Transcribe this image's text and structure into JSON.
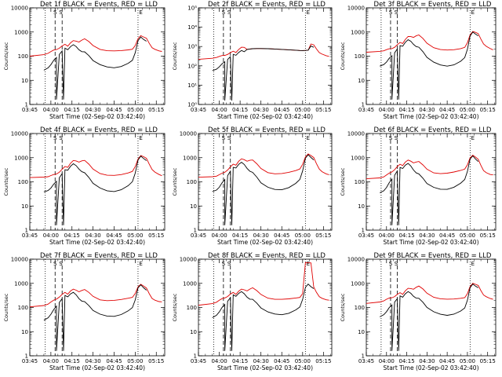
{
  "chart_data": [
    {
      "type": "line",
      "title": "Det 1f BLACK = Events, RED = LLD",
      "xlabel": "Start Time (02-Sep-02 03:42:40)",
      "ylabel": "Counts/sec",
      "yscale": "log",
      "ylim": [
        1,
        10000
      ],
      "yticks": [
        "1",
        "10",
        "100",
        "1000",
        "10000"
      ],
      "xlim": [
        "03:45",
        "05:21"
      ],
      "xticks": [
        "03:45",
        "04:00",
        "04:15",
        "04:30",
        "04:45",
        "05:00",
        "05:15"
      ],
      "markers": [
        "S",
        "S",
        "E"
      ],
      "series": []
    },
    {
      "type": "line",
      "title": "Det 2f BLACK = Events, RED = LLD",
      "xlabel": "Start Time (02-Sep-02 03:42:40)",
      "ylabel": "Counts/sec",
      "yscale": "log",
      "ylim": [
        1,
        100000
      ],
      "yticks": [
        "10⁰",
        "10¹",
        "10²",
        "10³",
        "10⁴",
        "10⁵"
      ],
      "xlim": [
        "03:45",
        "05:21"
      ],
      "xticks": [
        "03:45",
        "04:00",
        "04:15",
        "04:30",
        "04:45",
        "05:00",
        "05:15"
      ],
      "markers": [
        "S",
        "S",
        "E"
      ],
      "series": []
    },
    {
      "type": "line",
      "title": "Det 3f BLACK = Events, RED = LLD",
      "xlabel": "Start Time (02-Sep-02 03:42:40)",
      "ylabel": "Counts/sec",
      "yscale": "log",
      "ylim": [
        1,
        10000
      ],
      "yticks": [
        "1",
        "10",
        "100",
        "1000",
        "10000"
      ],
      "xlim": [
        "03:45",
        "05:21"
      ],
      "xticks": [
        "03:45",
        "04:00",
        "04:15",
        "04:30",
        "04:45",
        "05:00",
        "05:15"
      ],
      "markers": [
        "S",
        "S",
        "E"
      ],
      "series": []
    },
    {
      "type": "line",
      "title": "Det 4f BLACK = Events, RED = LLD",
      "xlabel": "Start Time (02-Sep-02 03:42:40)",
      "ylabel": "Counts/sec",
      "yscale": "log",
      "ylim": [
        1,
        10000
      ],
      "yticks": [
        "1",
        "10",
        "100",
        "1000",
        "10000"
      ],
      "xlim": [
        "03:45",
        "05:21"
      ],
      "xticks": [
        "03:45",
        "04:00",
        "04:15",
        "04:30",
        "04:45",
        "05:00",
        "05:15"
      ],
      "markers": [
        "S",
        "S",
        "E"
      ],
      "series": []
    },
    {
      "type": "line",
      "title": "Det 5f BLACK = Events, RED = LLD",
      "xlabel": "Start Time (02-Sep-02 03:42:40)",
      "ylabel": "Counts/sec",
      "yscale": "log",
      "ylim": [
        1,
        10000
      ],
      "yticks": [
        "1",
        "10",
        "100",
        "1000",
        "10000"
      ],
      "xlim": [
        "03:45",
        "05:21"
      ],
      "xticks": [
        "03:45",
        "04:00",
        "04:15",
        "04:30",
        "04:45",
        "05:00",
        "05:15"
      ],
      "markers": [
        "S",
        "S",
        "E"
      ],
      "series": []
    },
    {
      "type": "line",
      "title": "Det 6f BLACK = Events, RED = LLD",
      "xlabel": "Start Time (02-Sep-02 03:42:40)",
      "ylabel": "Counts/sec",
      "yscale": "log",
      "ylim": [
        1,
        10000
      ],
      "yticks": [
        "1",
        "10",
        "100",
        "1000",
        "10000"
      ],
      "xlim": [
        "03:45",
        "05:21"
      ],
      "xticks": [
        "03:45",
        "04:00",
        "04:15",
        "04:30",
        "04:45",
        "05:00",
        "05:15"
      ],
      "markers": [
        "S",
        "S",
        "E"
      ],
      "series": []
    },
    {
      "type": "line",
      "title": "Det 7f BLACK = Events, RED = LLD",
      "xlabel": "Start Time (02-Sep-02 03:42:40)",
      "ylabel": "Counts/sec",
      "yscale": "log",
      "ylim": [
        1,
        10000
      ],
      "yticks": [
        "1",
        "10",
        "100",
        "1000",
        "10000"
      ],
      "xlim": [
        "03:45",
        "05:21"
      ],
      "xticks": [
        "03:45",
        "04:00",
        "04:15",
        "04:30",
        "04:45",
        "05:00",
        "05:15"
      ],
      "markers": [
        "S",
        "S",
        "E"
      ],
      "series": []
    },
    {
      "type": "line",
      "title": "Det 8f BLACK = Events, RED = LLD",
      "xlabel": "Start Time (02-Sep-02 03:42:40)",
      "ylabel": "Counts/sec",
      "yscale": "log",
      "ylim": [
        1,
        10000
      ],
      "yticks": [
        "1",
        "10",
        "100",
        "1000",
        "10000"
      ],
      "xlim": [
        "03:45",
        "05:21"
      ],
      "xticks": [
        "03:45",
        "04:00",
        "04:15",
        "04:30",
        "04:45",
        "05:00",
        "05:15"
      ],
      "markers": [
        "S",
        "S",
        "E"
      ],
      "series": []
    },
    {
      "type": "line",
      "title": "Det 9f BLACK = Events, RED = LLD",
      "xlabel": "Start Time (02-Sep-02 03:42:40)",
      "ylabel": "Counts/sec",
      "yscale": "log",
      "ylim": [
        1,
        10000
      ],
      "yticks": [
        "1",
        "10",
        "100",
        "1000",
        "10000"
      ],
      "xlim": [
        "03:45",
        "05:21"
      ],
      "xticks": [
        "03:45",
        "04:00",
        "04:15",
        "04:30",
        "04:45",
        "05:00",
        "05:15"
      ],
      "markers": [
        "S",
        "S",
        "E"
      ],
      "series": []
    }
  ],
  "style": {
    "events_color": "#000000",
    "lld_color": "#e00000",
    "axis_color": "#000000"
  },
  "profiles": {
    "x": [
      "03:45",
      "03:55",
      "03:58",
      "04:00",
      "04:02",
      "04:04",
      "04:06",
      "04:08",
      "04:10",
      "04:12",
      "04:14",
      "04:16",
      "04:18",
      "04:20",
      "04:22",
      "04:24",
      "04:27",
      "04:30",
      "04:35",
      "04:40",
      "04:45",
      "04:50",
      "04:55",
      "04:58",
      "05:00",
      "05:02",
      "05:04",
      "05:06",
      "05:08",
      "05:10",
      "05:12",
      "05:14",
      "05:17",
      "05:19"
    ],
    "red": [
      100,
      110,
      120,
      140,
      160,
      170,
      200,
      260,
      320,
      280,
      400,
      500,
      470,
      420,
      480,
      520,
      380,
      250,
      170,
      150,
      150,
      160,
      180,
      200,
      300,
      600,
      800,
      700,
      600,
      350,
      220,
      180,
      150,
      140
    ],
    "black": [
      null,
      25,
      30,
      40,
      60,
      80,
      110,
      160,
      220,
      200,
      280,
      340,
      280,
      200,
      160,
      150,
      100,
      60,
      40,
      32,
      30,
      35,
      50,
      70,
      150,
      500,
      700,
      550,
      450,
      null,
      null,
      null,
      null,
      null
    ]
  },
  "panel_scale": [
    {
      "red": 1.0,
      "black": 1.0,
      "black_start": "03:55",
      "dips": [
        "04:04",
        "04:09"
      ]
    },
    {
      "red": 2.0,
      "black": 2.0,
      "black_start": "03:55",
      "dips": [
        "04:04",
        "04:09"
      ],
      "flat_from": "04:20",
      "flat_to": "05:05",
      "flat_value": 700
    },
    {
      "red": 1.3,
      "black": 1.4,
      "black_start": "03:55",
      "dips": [
        "04:04",
        "04:09"
      ]
    },
    {
      "red": 1.4,
      "black": 1.5,
      "black_start": "03:55",
      "dips": [
        "04:04",
        "04:09"
      ]
    },
    {
      "red": 1.6,
      "black": 1.7,
      "black_start": "03:55",
      "dips": [
        "04:04",
        "04:09"
      ]
    },
    {
      "red": 1.5,
      "black": 1.6,
      "black_start": "03:55",
      "dips": [
        "04:04",
        "04:09"
      ]
    },
    {
      "red": 1.2,
      "black": 1.3,
      "black_start": "03:55",
      "dips": [
        "04:04",
        "04:09"
      ]
    },
    {
      "red": 1.3,
      "black": 1.5,
      "black_start": "03:55",
      "dips": [
        "04:04",
        "04:09"
      ],
      "spike_from": "05:02",
      "spike_to": "05:06",
      "spike_value": 8000
    },
    {
      "red": 1.4,
      "black": 1.5,
      "black_start": "03:55",
      "dips": [
        "04:04",
        "04:09"
      ]
    }
  ]
}
